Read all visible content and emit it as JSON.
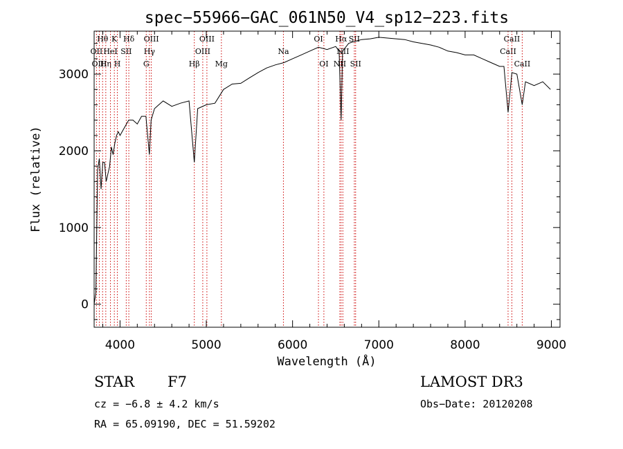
{
  "chart_data": {
    "type": "line",
    "title": "spec−55966−GAC_061N50_V4_sp12−223.fits",
    "xlabel": "Wavelength (Å)",
    "ylabel": "Flux (relative)",
    "xlim": [
      3700,
      9100
    ],
    "ylim": [
      -300,
      3560
    ],
    "xticks": [
      4000,
      5000,
      6000,
      7000,
      8000,
      9000
    ],
    "yticks": [
      0,
      1000,
      2000,
      3000
    ],
    "grid": false,
    "series": [
      {
        "name": "flux",
        "x": [
          3700,
          3720,
          3740,
          3760,
          3780,
          3800,
          3820,
          3840,
          3860,
          3880,
          3900,
          3920,
          3940,
          3960,
          3980,
          4000,
          4050,
          4100,
          4150,
          4200,
          4250,
          4300,
          4340,
          4360,
          4400,
          4450,
          4500,
          4600,
          4700,
          4800,
          4861,
          4900,
          5000,
          5100,
          5200,
          5300,
          5400,
          5500,
          5600,
          5700,
          5800,
          5900,
          6000,
          6100,
          6200,
          6300,
          6400,
          6500,
          6540,
          6563,
          6580,
          6650,
          6700,
          6800,
          6900,
          7000,
          7100,
          7200,
          7300,
          7400,
          7500,
          7600,
          7700,
          7800,
          7900,
          8000,
          8100,
          8200,
          8300,
          8400,
          8450,
          8498,
          8542,
          8600,
          8662,
          8700,
          8800,
          8900,
          8990
        ],
        "values": [
          0,
          150,
          1750,
          1900,
          1500,
          1850,
          1850,
          1600,
          1700,
          1800,
          2050,
          1950,
          2100,
          2200,
          2250,
          2200,
          2300,
          2400,
          2400,
          2350,
          2450,
          2450,
          1950,
          2400,
          2550,
          2600,
          2650,
          2580,
          2620,
          2650,
          1850,
          2550,
          2600,
          2620,
          2800,
          2870,
          2880,
          2950,
          3020,
          3080,
          3120,
          3150,
          3200,
          3250,
          3300,
          3350,
          3320,
          3360,
          3300,
          2400,
          3300,
          3400,
          3420,
          3450,
          3460,
          3480,
          3470,
          3460,
          3450,
          3420,
          3400,
          3380,
          3350,
          3300,
          3280,
          3250,
          3250,
          3200,
          3150,
          3100,
          3100,
          2500,
          3020,
          3000,
          2600,
          2900,
          2850,
          2900,
          2800
        ]
      }
    ],
    "lines": [
      {
        "name": "Hθ",
        "wave": 3798,
        "row": 0
      },
      {
        "name": "OII",
        "wave": 3727,
        "row": 1
      },
      {
        "name": "OIII",
        "wave": 3760,
        "row": 2
      },
      {
        "name": "Hη",
        "wave": 3835,
        "row": 2
      },
      {
        "name": "HeI",
        "wave": 3889,
        "row": 1
      },
      {
        "name": "K",
        "wave": 3934,
        "row": 0
      },
      {
        "name": "H",
        "wave": 3969,
        "row": 2
      },
      {
        "name": "SII",
        "wave": 4072,
        "row": 1
      },
      {
        "name": "Hδ",
        "wave": 4102,
        "row": 0
      },
      {
        "name": "OIII",
        "wave": 4363,
        "row": 0
      },
      {
        "name": "Hγ",
        "wave": 4341,
        "row": 1
      },
      {
        "name": "G",
        "wave": 4304,
        "row": 2
      },
      {
        "name": "Hβ",
        "wave": 4861,
        "row": 2
      },
      {
        "name": "OIII",
        "wave": 4959,
        "row": 1
      },
      {
        "name": "OIII",
        "wave": 5007,
        "row": 0
      },
      {
        "name": "Mg",
        "wave": 5175,
        "row": 2
      },
      {
        "name": "Na",
        "wave": 5894,
        "row": 1
      },
      {
        "name": "OI",
        "wave": 6300,
        "row": 0
      },
      {
        "name": "OI",
        "wave": 6363,
        "row": 2
      },
      {
        "name": "NII",
        "wave": 6548,
        "row": 2
      },
      {
        "name": "Hα",
        "wave": 6563,
        "row": 0
      },
      {
        "name": "NII",
        "wave": 6583,
        "row": 1
      },
      {
        "name": "SII",
        "wave": 6716,
        "row": 0
      },
      {
        "name": "SII",
        "wave": 6731,
        "row": 2
      },
      {
        "name": "CaII",
        "wave": 8498,
        "row": 1
      },
      {
        "name": "CaII",
        "wave": 8542,
        "row": 0
      },
      {
        "name": "CaII",
        "wave": 8662,
        "row": 2
      }
    ]
  },
  "info": {
    "class_label": "STAR",
    "subclass": "F7",
    "survey": "LAMOST DR3",
    "cz": "cz = −6.8 ± 4.2 km/s",
    "obs_date": "Obs−Date: 20120208",
    "coords": "RA =  65.09190, DEC =  51.59202"
  }
}
